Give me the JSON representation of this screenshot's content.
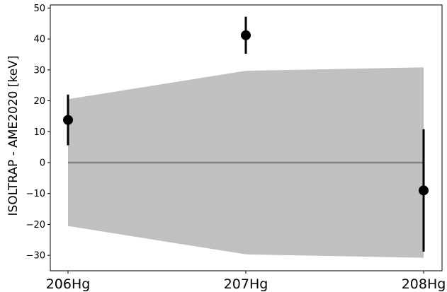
{
  "chart_data": {
    "type": "scatter",
    "title": "",
    "xlabel": "",
    "ylabel": "ISOLTRAP - AME2020 [keV]",
    "categories": [
      "206Hg",
      "207Hg",
      "208Hg"
    ],
    "ylim": [
      -35,
      51
    ],
    "yticks": [
      50,
      40,
      30,
      20,
      10,
      0,
      -10,
      -20,
      -30
    ],
    "ytick_labels": [
      "50",
      "40",
      "30",
      "20",
      "10",
      "0",
      "−10",
      "−20",
      "−30"
    ],
    "grid": false,
    "series": [
      {
        "kind": "points_with_errorbars",
        "values": [
          13.8,
          41.2,
          -9.0
        ],
        "errors": [
          8.2,
          6.0,
          19.8
        ],
        "color": "#000000"
      },
      {
        "kind": "uncertainty_band",
        "lower": [
          -20.5,
          -29.7,
          -30.8
        ],
        "upper": [
          20.5,
          29.7,
          30.8
        ],
        "color": "#c0c0c0"
      },
      {
        "kind": "reference_line",
        "values": [
          0,
          0,
          0
        ],
        "color": "#808080"
      }
    ]
  }
}
